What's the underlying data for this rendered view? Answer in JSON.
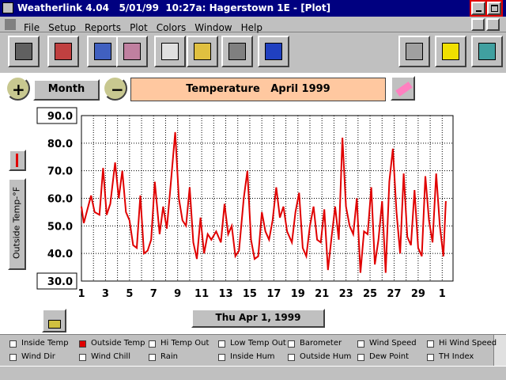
{
  "window": {
    "title": "Weatherlink 4.04   5/01/99  10:27a: Hagerstown 1E - [Plot]"
  },
  "menu": [
    "File",
    "Setup",
    "Reports",
    "Plot",
    "Colors",
    "Window",
    "Help"
  ],
  "controls": {
    "period": "Month",
    "date": "Thu Apr 1, 1999"
  },
  "chart_data": {
    "type": "line",
    "title": "Temperature   April 1999",
    "y_label": "Outside Temp-°F",
    "x": [
      1.0,
      1.2,
      1.5,
      1.8,
      2.1,
      2.5,
      2.8,
      3.1,
      3.4,
      3.8,
      4.1,
      4.4,
      4.7,
      5.0,
      5.3,
      5.6,
      5.9,
      6.2,
      6.5,
      6.8,
      7.1,
      7.5,
      7.8,
      8.1,
      8.4,
      8.8,
      9.1,
      9.4,
      9.7,
      10.0,
      10.3,
      10.6,
      10.9,
      11.2,
      11.5,
      11.8,
      12.2,
      12.6,
      12.9,
      13.2,
      13.5,
      13.8,
      14.1,
      14.5,
      14.8,
      15.1,
      15.4,
      15.7,
      16.0,
      16.3,
      16.6,
      16.9,
      17.2,
      17.5,
      17.8,
      18.1,
      18.5,
      18.8,
      19.1,
      19.4,
      19.7,
      20.0,
      20.3,
      20.6,
      20.9,
      21.2,
      21.5,
      21.8,
      22.1,
      22.4,
      22.7,
      23.0,
      23.3,
      23.6,
      23.9,
      24.2,
      24.5,
      24.8,
      25.1,
      25.4,
      25.7,
      26.0,
      26.3,
      26.6,
      26.9,
      27.2,
      27.5,
      27.8,
      28.1,
      28.4,
      28.7,
      29.0,
      29.3,
      29.6,
      29.9,
      30.2,
      30.5,
      30.8,
      31.1,
      31.3
    ],
    "series": [
      {
        "color": "#e00000",
        "values": [
          57,
          51,
          56,
          61,
          55,
          54,
          71,
          54,
          58,
          73,
          60,
          70,
          55,
          52,
          43,
          42,
          61,
          40,
          41,
          45,
          66,
          47,
          57,
          49,
          64,
          84,
          60,
          52,
          50,
          64,
          44,
          38,
          53,
          40,
          47,
          45,
          48,
          44,
          58,
          47,
          50,
          39,
          41,
          60,
          70,
          45,
          38,
          39,
          55,
          48,
          45,
          52,
          64,
          53,
          57,
          48,
          44,
          55,
          62,
          42,
          39,
          50,
          57,
          45,
          44,
          56,
          34,
          46,
          57,
          45,
          82,
          57,
          50,
          47,
          60,
          33,
          48,
          47,
          64,
          36,
          45,
          59,
          33,
          66,
          78,
          55,
          40,
          69,
          46,
          43,
          63,
          42,
          39,
          68,
          52,
          44,
          69,
          50,
          39,
          59
        ]
      }
    ],
    "xlim": [
      1,
      31.9
    ],
    "xticks": [
      1,
      3,
      5,
      7,
      9,
      11,
      13,
      15,
      17,
      19,
      21,
      23,
      25,
      27,
      29,
      {
        "value": 31,
        "label": "1"
      }
    ],
    "ylim": [
      30,
      90
    ],
    "yticks": [
      {
        "value": 30,
        "label": "30.0"
      },
      {
        "value": 40,
        "label": "40.0"
      },
      {
        "value": 50,
        "label": "50.0"
      },
      {
        "value": 60,
        "label": "60.0"
      },
      {
        "value": 70,
        "label": "70.0"
      },
      {
        "value": 80,
        "label": "80.0"
      },
      {
        "value": 90,
        "label": "90.0"
      }
    ],
    "grid": true
  },
  "legend": {
    "items": [
      {
        "label": "Inside Temp",
        "checked": false
      },
      {
        "label": "Outside Temp",
        "checked": true
      },
      {
        "label": "Hi Temp Out",
        "checked": false
      },
      {
        "label": "Low Temp Out",
        "checked": false
      },
      {
        "label": "Barometer",
        "checked": false
      },
      {
        "label": "Wind Speed",
        "checked": false
      },
      {
        "label": "Hi Wind Speed",
        "checked": false
      },
      {
        "label": "Wind Dir",
        "checked": false
      },
      {
        "label": "Wind Chill",
        "checked": false
      },
      {
        "label": "Rain",
        "checked": false
      },
      {
        "label": "Inside Hum",
        "checked": false
      },
      {
        "label": "Outside Hum",
        "checked": false
      },
      {
        "label": "Dew Point",
        "checked": false
      },
      {
        "label": "TH Index",
        "checked": false
      }
    ]
  }
}
